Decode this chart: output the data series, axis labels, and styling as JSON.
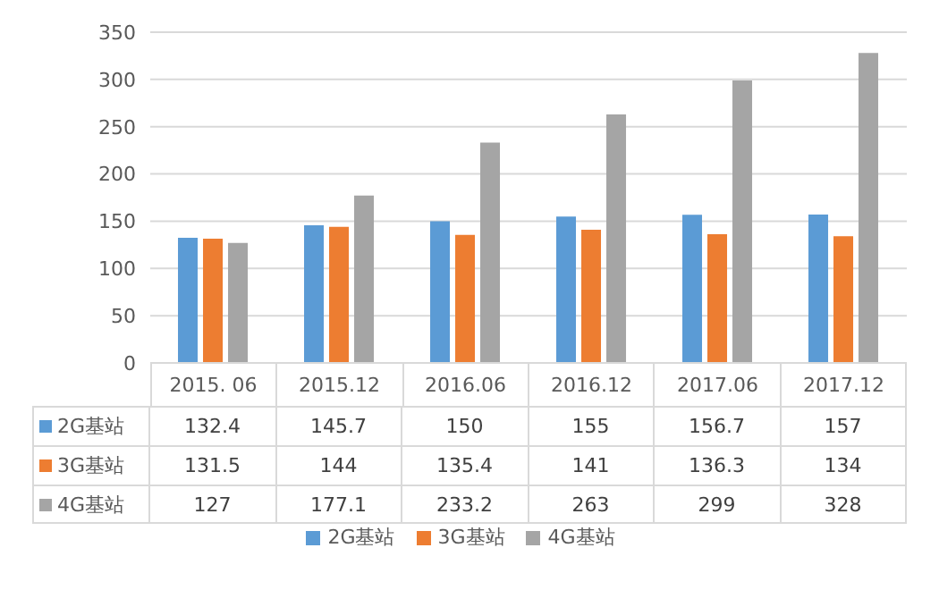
{
  "chart_data": {
    "type": "bar",
    "categories": [
      "2015. 06",
      "2015.12",
      "2016.06",
      "2016.12",
      "2017.06",
      "2017.12"
    ],
    "series": [
      {
        "name": "2G基站",
        "color": "#5b9bd5",
        "values": [
          132.4,
          145.7,
          150,
          155,
          156.7,
          157
        ]
      },
      {
        "name": "3G基站",
        "color": "#ed7d31",
        "values": [
          131.5,
          144,
          135.4,
          141,
          136.3,
          134
        ]
      },
      {
        "name": "4G基站",
        "color": "#a5a5a5",
        "values": [
          127,
          177.1,
          233.2,
          263,
          299,
          328
        ]
      }
    ],
    "ylim": [
      0,
      350
    ],
    "yticks": [
      0,
      50,
      100,
      150,
      200,
      250,
      300,
      350
    ],
    "grid": "y",
    "legend": "bottom",
    "data_labels": true
  }
}
